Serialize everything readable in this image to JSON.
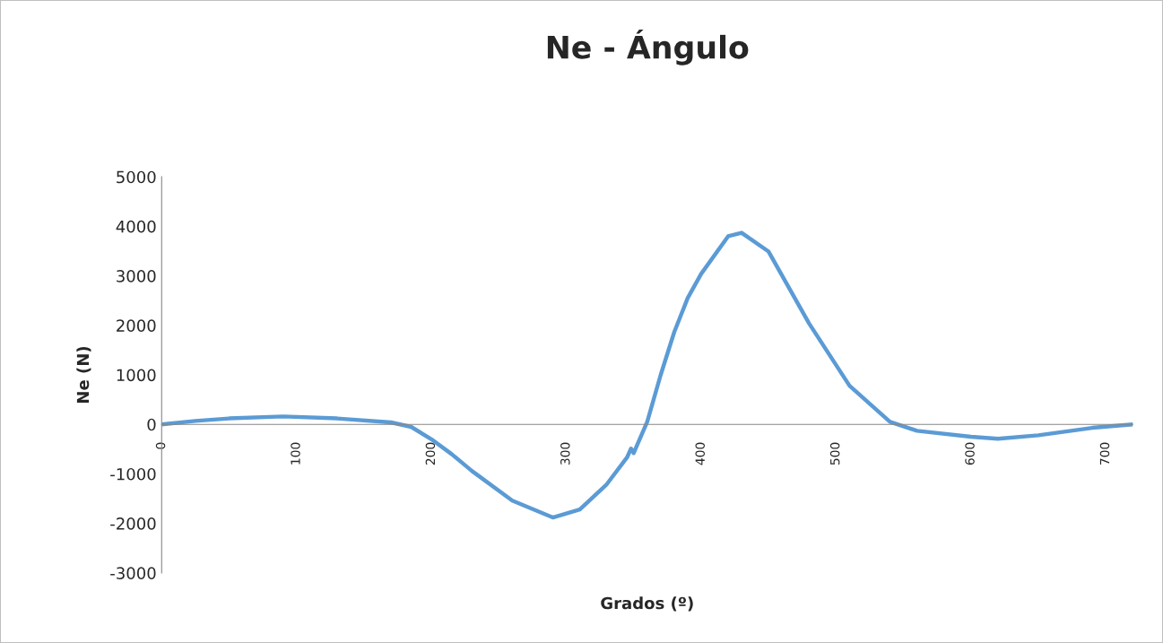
{
  "chart_data": {
    "type": "line",
    "title": "Ne - Ángulo",
    "xlabel": "Grados (º)",
    "ylabel": "Ne (N)",
    "x": [
      0,
      25,
      50,
      90,
      130,
      170,
      185,
      200,
      215,
      230,
      260,
      290,
      310,
      330,
      345,
      348,
      350,
      352,
      360,
      370,
      380,
      390,
      400,
      420,
      430,
      450,
      480,
      510,
      540,
      560,
      600,
      620,
      650,
      690,
      720
    ],
    "series": [
      {
        "color": "#5b9bd5",
        "values": [
          0,
          70,
          120,
          160,
          120,
          40,
          -50,
          -300,
          -600,
          -940,
          -1540,
          -1880,
          -1720,
          -1210,
          -670,
          -490,
          -580,
          -450,
          50,
          1000,
          1860,
          2550,
          3040,
          3800,
          3870,
          3490,
          2040,
          780,
          50,
          -130,
          -250,
          -290,
          -220,
          -70,
          0
        ]
      }
    ],
    "xlim": [
      0,
      720
    ],
    "xticks": [
      0,
      100,
      200,
      300,
      400,
      500,
      600,
      700
    ],
    "ylim": [
      -3000,
      5000
    ],
    "yticks": [
      -3000,
      -2000,
      -1000,
      0,
      1000,
      2000,
      3000,
      4000,
      5000
    ],
    "grid": false,
    "legend": false,
    "marker": "none",
    "line_style": "solid"
  }
}
